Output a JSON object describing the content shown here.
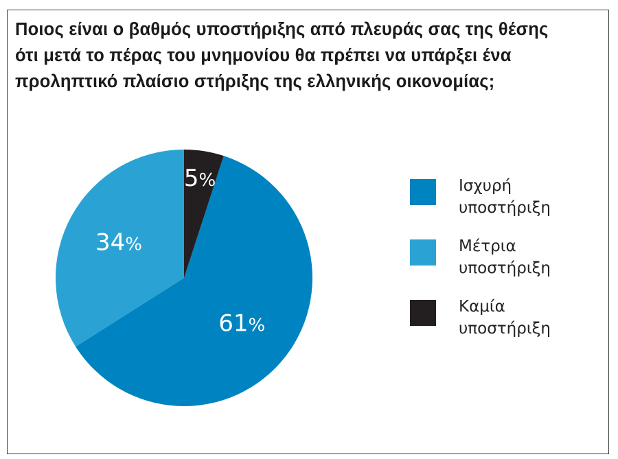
{
  "title_lines": [
    "Ποιος είναι ο βαθμός υποστήριξης από πλευράς σας της θέσης",
    "ότι μετά το πέρας του μνημονίου θα πρέπει να  υπάρξει ένα",
    "προληπτικό πλαίσιο στήριξης της ελληνικής οικονομίας;"
  ],
  "colors": {
    "strong": "#0083c1",
    "moderate": "#2aa3d4",
    "none": "#231f20",
    "label": "#ffffff"
  },
  "legend": [
    {
      "key": "strong",
      "line1": "Ισχυρή",
      "line2": "υποστήριξη"
    },
    {
      "key": "moderate",
      "line1": "Μέτρια",
      "line2": "υποστήριξη"
    },
    {
      "key": "none",
      "line1": "Καμία",
      "line2": "υποστήριξη"
    }
  ],
  "chart_data": {
    "type": "pie",
    "title": "Ποιος είναι ο βαθμός υποστήριξης από πλευράς σας της θέσης ότι μετά το πέρας του μνημονίου θα πρέπει να  υπάρξει ένα προληπτικό πλαίσιο στήριξης της ελληνικής οικονομίας;",
    "categories": [
      "Ισχυρή υποστήριξη",
      "Μέτρια υποστήριξη",
      "Καμία υποστήριξη"
    ],
    "values": [
      61,
      34,
      5
    ],
    "labels": [
      "61%",
      "34%",
      "5%"
    ],
    "unit": "%",
    "start": "12 o'clock",
    "direction": "clockwise, starting with Καμία υποστήριξη",
    "legend_position": "right"
  }
}
